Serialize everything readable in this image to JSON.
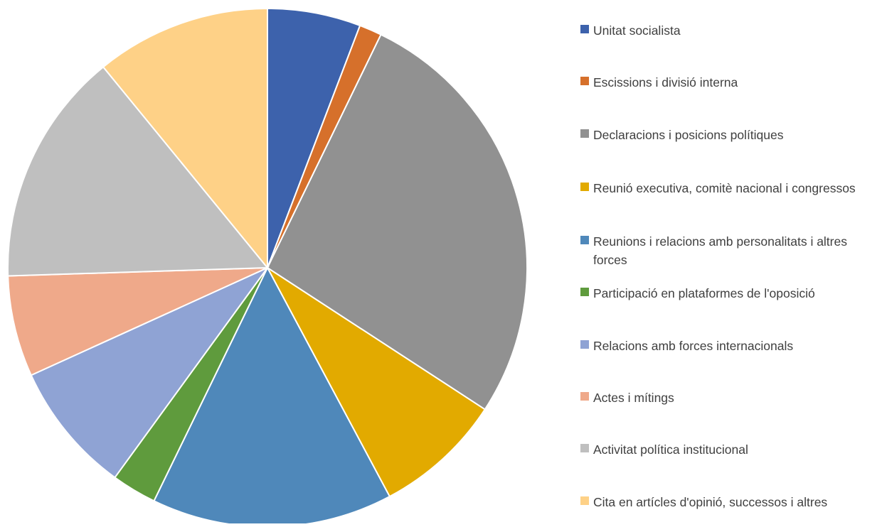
{
  "chart_data": {
    "type": "pie",
    "title": "",
    "legend_position": "right",
    "slices": [
      {
        "label": "Unitat socialista",
        "value": 5.8,
        "color": "#3D62AC"
      },
      {
        "label": "Escissions i divisió interna",
        "value": 1.4,
        "color": "#D6702B"
      },
      {
        "label": "Declaracions i posicions polítiques",
        "value": 27.0,
        "color": "#919191"
      },
      {
        "label": "Reunió executiva, comitè nacional i congressos",
        "value": 8.0,
        "color": "#E2AA00"
      },
      {
        "label": "Reunions i relacions amb personalitats i altres forces",
        "value": 15.0,
        "color": "#4F88BA"
      },
      {
        "label": "Participació en plataformes de l'oposició",
        "value": 2.8,
        "color": "#5F9B3D"
      },
      {
        "label": "Relacions amb forces internacionals",
        "value": 8.2,
        "color": "#8FA3D4"
      },
      {
        "label": "Actes i mítings",
        "value": 6.3,
        "color": "#EFA98A"
      },
      {
        "label": "Activitat política institucional",
        "value": 14.6,
        "color": "#BFBFBF"
      },
      {
        "label": "Cita en artícles d'opinió, successos i altres",
        "value": 10.9,
        "color": "#FED187"
      }
    ]
  }
}
